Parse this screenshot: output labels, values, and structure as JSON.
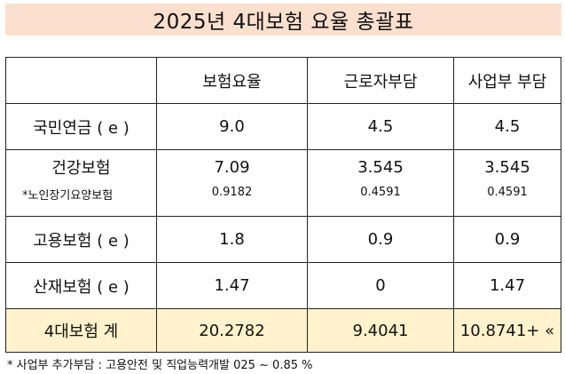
{
  "title": "2025년 4대보험 요율 총괄표",
  "columns": [
    "",
    "보험요율",
    "근로자부담",
    "사업부 부담"
  ],
  "rows": [
    {
      "label": "국민연금 ( e )",
      "rate": "9.0",
      "employee": "4.5",
      "employer": "4.5"
    },
    {
      "label": "건강보험",
      "rate": "7.09",
      "employee": "3.545",
      "employer": "3.545"
    },
    {
      "label": "*노인장기요양보험",
      "rate": "0.9182",
      "employee": "0.4591",
      "employer": "0.4591"
    },
    {
      "label": "고용보험 ( e )",
      "rate": "1.8",
      "employee": "0.9",
      "employer": "0.9"
    },
    {
      "label": "산재보험 ( e )",
      "rate": "1.47",
      "employee": "0",
      "employer": "1.47"
    }
  ],
  "total": {
    "label": "4대보험 계",
    "rate": "20.2782",
    "employee": "9.4041",
    "employer": "10.8741+ «"
  },
  "footnote": "* 사업부 추가부담 : 고용안전 및 직업능력개발 025 ~ 0.85 %"
}
